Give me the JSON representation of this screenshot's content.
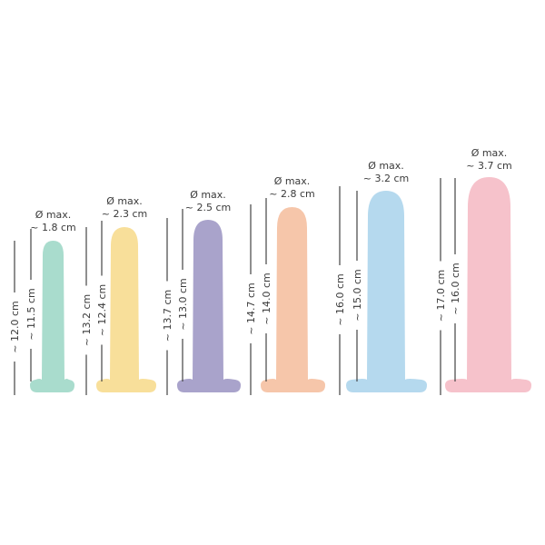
{
  "items": [
    {
      "diameter_label": "Ø max.",
      "diameter": "~ 1.8 cm",
      "total_length": "~ 12.0 cm",
      "insertable_length": "~ 11.5 cm",
      "color": "#a9dccd"
    },
    {
      "diameter_label": "Ø max.",
      "diameter": "~ 2.3 cm",
      "total_length": "~ 13.2 cm",
      "insertable_length": "~ 12.4 cm",
      "color": "#f8df9a"
    },
    {
      "diameter_label": "Ø max.",
      "diameter": "~ 2.5 cm",
      "total_length": "~ 13.7 cm",
      "insertable_length": "~ 13.0 cm",
      "color": "#a9a3cb"
    },
    {
      "diameter_label": "Ø max.",
      "diameter": "~ 2.8 cm",
      "total_length": "~ 14.7 cm",
      "insertable_length": "~ 14.0 cm",
      "color": "#f6c6aa"
    },
    {
      "diameter_label": "Ø max.",
      "diameter": "~ 3.2 cm",
      "total_length": "~ 16.0 cm",
      "insertable_length": "~ 15.0 cm",
      "color": "#b5d9ee"
    },
    {
      "diameter_label": "Ø max.",
      "diameter": "~ 3.7 cm",
      "total_length": "~ 17.0 cm",
      "insertable_length": "~ 16.0 cm",
      "color": "#f6c2cb"
    }
  ]
}
